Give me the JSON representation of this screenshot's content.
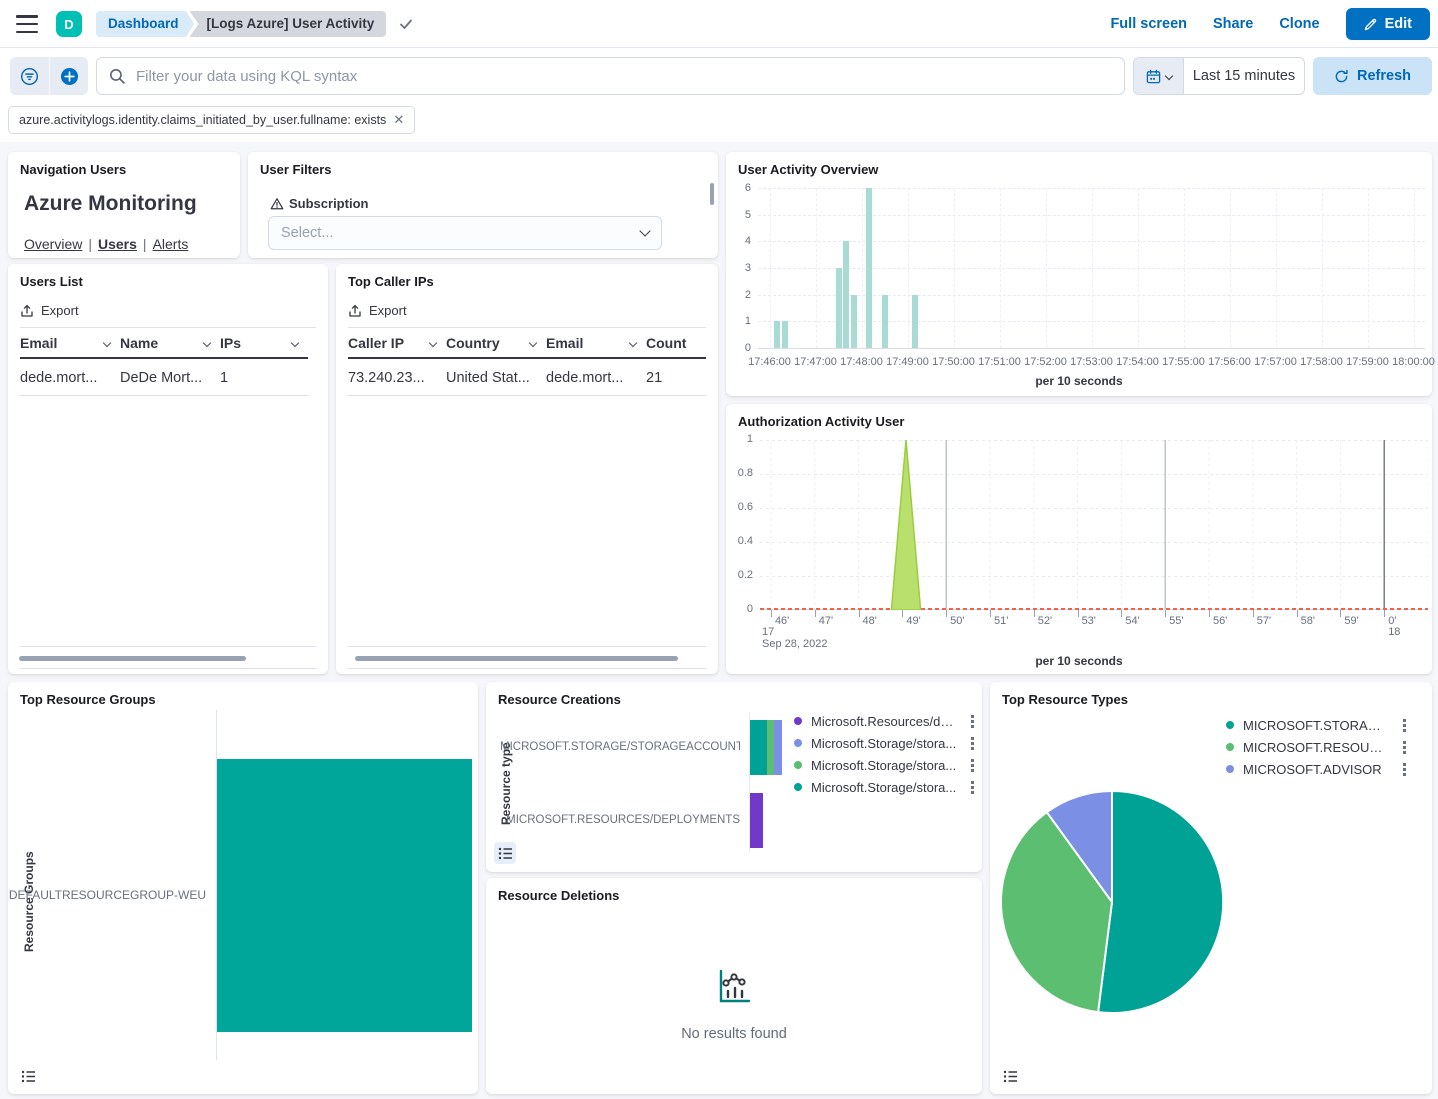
{
  "header": {
    "avatar_initial": "D",
    "breadcrumbs": {
      "root": "Dashboard",
      "current": "[Logs Azure] User Activity"
    },
    "actions": {
      "full_screen": "Full screen",
      "share": "Share",
      "clone": "Clone",
      "edit": "Edit"
    }
  },
  "filter_bar": {
    "search_placeholder": "Filter your data using KQL syntax",
    "time_range": "Last 15 minutes",
    "refresh_label": "Refresh",
    "filter_pill": "azure.activitylogs.identity.claims_initiated_by_user.fullname: exists"
  },
  "colors": {
    "primary_blue": "#0071c2",
    "link_blue": "#0068b5",
    "teal": "#00a39a",
    "light_teal_bar": "#a7dbd4",
    "green": "#5cbe71",
    "periwinkle": "#7b8fe4",
    "purple": "#7239c9",
    "lime_fill": "#b9e06c",
    "lime_stroke": "#9ccd3f",
    "orange": "#e8664c",
    "avatar_teal": "#00bfb3"
  },
  "panels": {
    "navigation": {
      "title": "Navigation Users",
      "heading": "Azure Monitoring",
      "links": [
        {
          "label": "Overview",
          "active": false
        },
        {
          "label": "Users",
          "active": true
        },
        {
          "label": "Alerts",
          "active": false
        }
      ]
    },
    "user_filters": {
      "title": "User Filters",
      "field_label": "Subscription",
      "select_placeholder": "Select..."
    },
    "users_list": {
      "title": "Users List",
      "export_label": "Export",
      "columns": [
        {
          "label": "Email",
          "sortable": true
        },
        {
          "label": "Name",
          "sortable": true
        },
        {
          "label": "IPs",
          "sortable": true
        }
      ],
      "rows": [
        [
          "dede.mort...",
          "DeDe Mort...",
          "1"
        ]
      ]
    },
    "top_caller_ips": {
      "title": "Top Caller IPs",
      "export_label": "Export",
      "columns": [
        {
          "label": "Caller IP",
          "sortable": true
        },
        {
          "label": "Country",
          "sortable": true
        },
        {
          "label": "Email",
          "sortable": true
        },
        {
          "label": "Count",
          "sortable": false
        }
      ],
      "rows": [
        [
          "73.240.23...",
          "United Stat...",
          "dede.mort...",
          "21"
        ]
      ]
    },
    "resource_deletions": {
      "title": "Resource Deletions",
      "empty_message": "No results found"
    }
  },
  "chart_data": [
    {
      "id": "user_activity_overview",
      "type": "bar",
      "title": "User Activity Overview",
      "xlabel": "per 10 seconds",
      "ylim": [
        0,
        6
      ],
      "yticks": [
        0,
        1,
        2,
        3,
        4,
        5,
        6
      ],
      "x_domain": [
        "17:45:45",
        "18:00:15"
      ],
      "x_ticks": [
        "17:46:00",
        "17:47:00",
        "17:48:00",
        "17:49:00",
        "17:50:00",
        "17:51:00",
        "17:52:00",
        "17:53:00",
        "17:54:00",
        "17:55:00",
        "17:56:00",
        "17:57:00",
        "17:58:00",
        "17:59:00",
        "18:00:00"
      ],
      "bars": [
        {
          "time": "17:46:10",
          "value": 1
        },
        {
          "time": "17:46:20",
          "value": 1
        },
        {
          "time": "17:47:30",
          "value": 3
        },
        {
          "time": "17:47:40",
          "value": 4
        },
        {
          "time": "17:47:50",
          "value": 2
        },
        {
          "time": "17:48:10",
          "value": 6
        },
        {
          "time": "17:48:30",
          "value": 2
        },
        {
          "time": "17:49:10",
          "value": 2
        }
      ],
      "bar_color": "#a7dbd4",
      "grid": true
    },
    {
      "id": "authorization_activity_user",
      "type": "area",
      "title": "Authorization Activity User",
      "xlabel": "per 10 seconds",
      "ylim": [
        0,
        1
      ],
      "yticks": [
        0,
        0.2,
        0.4,
        0.6,
        0.8,
        1
      ],
      "x_domain": [
        "17:45:45",
        "18:01:00"
      ],
      "x_ticks": [
        "46'",
        "47'",
        "48'",
        "49'",
        "50'",
        "51'",
        "52'",
        "53'",
        "54'",
        "55'",
        "56'",
        "57'",
        "58'",
        "59'",
        "0'"
      ],
      "major_gridline_minutes": [
        "17:50:00",
        "17:55:00"
      ],
      "end_gridline_minute": "18:00:00",
      "date_annotation_left_hour": "17",
      "date_annotation_left_date": "Sep 28, 2022",
      "date_annotation_right_hour": "18",
      "spike": {
        "base_start": "17:48:45",
        "peak_time": "17:49:05",
        "base_end": "17:49:25",
        "peak_value": 1
      },
      "baseline_value": 0,
      "spike_fill": "#b9e06c",
      "spike_stroke": "#9ccd3f",
      "baseline_color": "#e8664c"
    },
    {
      "id": "top_resource_groups",
      "type": "bar",
      "orientation": "horizontal",
      "title": "Top Resource Groups",
      "ylabel": "Resource Groups",
      "categories": [
        "DEFAULTRESOURCEGROUP-WEU"
      ],
      "values": [
        1
      ],
      "value_axis": "hidden",
      "bar_color": "#00a69a"
    },
    {
      "id": "resource_creations",
      "type": "bar",
      "orientation": "horizontal",
      "stacked": true,
      "title": "Resource Creations",
      "ylabel": "Resource type",
      "categories": [
        "MICROSOFT.STORAGE/STORAGEACCOUNTS",
        "MICROSOFT.RESOURCES/DEPLOYMENTS"
      ],
      "value_axis": "hidden",
      "legend_position": "right",
      "series": [
        {
          "name": "Microsoft.Resources/de...",
          "color": "#7239c9",
          "values": [
            0,
            13
          ]
        },
        {
          "name": "Microsoft.Storage/stora...",
          "color": "#7b8fe4",
          "values": [
            8,
            0
          ]
        },
        {
          "name": "Microsoft.Storage/stora...",
          "color": "#5cbe71",
          "values": [
            7,
            0
          ]
        },
        {
          "name": "Microsoft.Storage/stora...",
          "color": "#00a296",
          "values": [
            17,
            0
          ]
        }
      ]
    },
    {
      "id": "top_resource_types",
      "type": "pie",
      "title": "Top Resource Types",
      "legend_position": "top-right",
      "slices": [
        {
          "label": "MICROSOFT.STORAGE/...",
          "color": "#00a296",
          "pct": 52
        },
        {
          "label": "MICROSOFT.RESOURCE...",
          "color": "#5cbe71",
          "pct": 38
        },
        {
          "label": "MICROSOFT.ADVISOR",
          "color": "#7b8fe4",
          "pct": 10
        }
      ]
    }
  ]
}
